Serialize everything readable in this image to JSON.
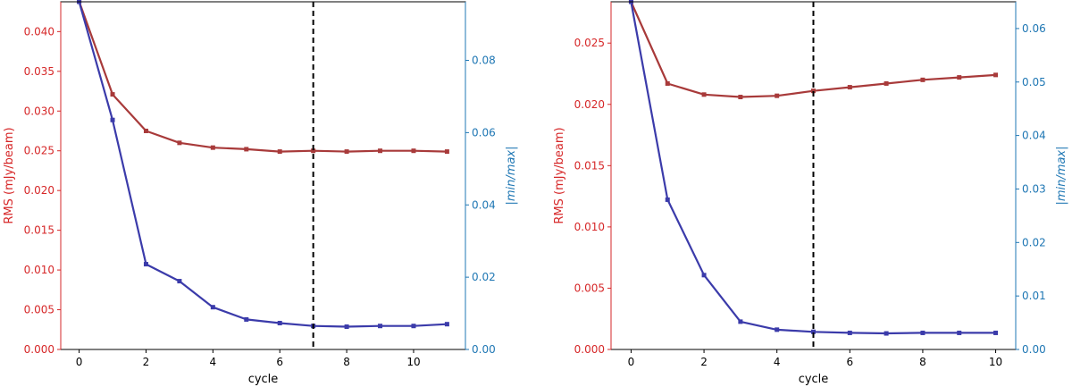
{
  "chart_data": [
    {
      "type": "line",
      "xlabel": "cycle",
      "ylabel_left": "RMS (mJy/beam)",
      "ylabel_right": "|min/max|",
      "colors": {
        "left": "#d62728",
        "right": "#1f77b4",
        "rms_line": "#a83a3a",
        "ratio_line": "#3b3baa"
      },
      "xlim": [
        -0.55,
        11.55
      ],
      "ylim_left": [
        0,
        0.04375
      ],
      "ylim_right": [
        0,
        0.0962
      ],
      "xticks": [
        0,
        2,
        4,
        6,
        8,
        10
      ],
      "xtick_labels": [
        "0",
        "2",
        "4",
        "6",
        "8",
        "10"
      ],
      "yticks_left": [
        0,
        0.005,
        0.01,
        0.015,
        0.02,
        0.025,
        0.03,
        0.035,
        0.04
      ],
      "ytick_labels_left": [
        "0.000",
        "0.005",
        "0.010",
        "0.015",
        "0.020",
        "0.025",
        "0.030",
        "0.035",
        "0.040"
      ],
      "yticks_right": [
        0,
        0.02,
        0.04,
        0.06,
        0.08
      ],
      "ytick_labels_right": [
        "0.00",
        "0.02",
        "0.04",
        "0.06",
        "0.08"
      ],
      "vline_x": 7,
      "series": [
        {
          "axis": "left",
          "x": [
            0,
            1,
            2,
            3,
            4,
            5,
            6,
            7,
            8,
            9,
            10,
            11
          ],
          "values": [
            0.0438,
            0.0321,
            0.0275,
            0.026,
            0.0254,
            0.0252,
            0.0249,
            0.025,
            0.0249,
            0.025,
            0.025,
            0.0249
          ]
        },
        {
          "axis": "right",
          "x": [
            0,
            1,
            2,
            3,
            4,
            5,
            6,
            7,
            8,
            9,
            10,
            11
          ],
          "values": [
            0.0962,
            0.0635,
            0.0236,
            0.0189,
            0.0117,
            0.0083,
            0.0073,
            0.0065,
            0.0063,
            0.0065,
            0.0065,
            0.007
          ]
        }
      ]
    },
    {
      "type": "line",
      "xlabel": "cycle",
      "ylabel_left": "RMS (mJy/beam)",
      "ylabel_right": "|min/max|",
      "colors": {
        "left": "#d62728",
        "right": "#1f77b4",
        "rms_line": "#a83a3a",
        "ratio_line": "#3b3baa"
      },
      "xlim": [
        -0.55,
        10.55
      ],
      "ylim_left": [
        0,
        0.02837
      ],
      "ylim_right": [
        0,
        0.065
      ],
      "xticks": [
        0,
        2,
        4,
        6,
        8,
        10
      ],
      "xtick_labels": [
        "0",
        "2",
        "4",
        "6",
        "8",
        "10"
      ],
      "yticks_left": [
        0,
        0.005,
        0.01,
        0.015,
        0.02,
        0.025
      ],
      "ytick_labels_left": [
        "0.000",
        "0.005",
        "0.010",
        "0.015",
        "0.020",
        "0.025"
      ],
      "yticks_right": [
        0,
        0.01,
        0.02,
        0.03,
        0.04,
        0.05,
        0.06
      ],
      "ytick_labels_right": [
        "0.00",
        "0.01",
        "0.02",
        "0.03",
        "0.04",
        "0.05",
        "0.06"
      ],
      "vline_x": 5,
      "series": [
        {
          "axis": "left",
          "x": [
            0,
            1,
            2,
            3,
            4,
            5,
            6,
            7,
            8,
            9,
            10
          ],
          "values": [
            0.02837,
            0.0217,
            0.0208,
            0.0206,
            0.0207,
            0.0211,
            0.0214,
            0.0217,
            0.022,
            0.0222,
            0.0224
          ]
        },
        {
          "axis": "right",
          "x": [
            0,
            1,
            2,
            3,
            4,
            5,
            6,
            7,
            8,
            9,
            10
          ],
          "values": [
            0.065,
            0.028,
            0.0139,
            0.0052,
            0.0037,
            0.0033,
            0.0031,
            0.003,
            0.0031,
            0.0031,
            0.0031
          ]
        }
      ]
    }
  ]
}
